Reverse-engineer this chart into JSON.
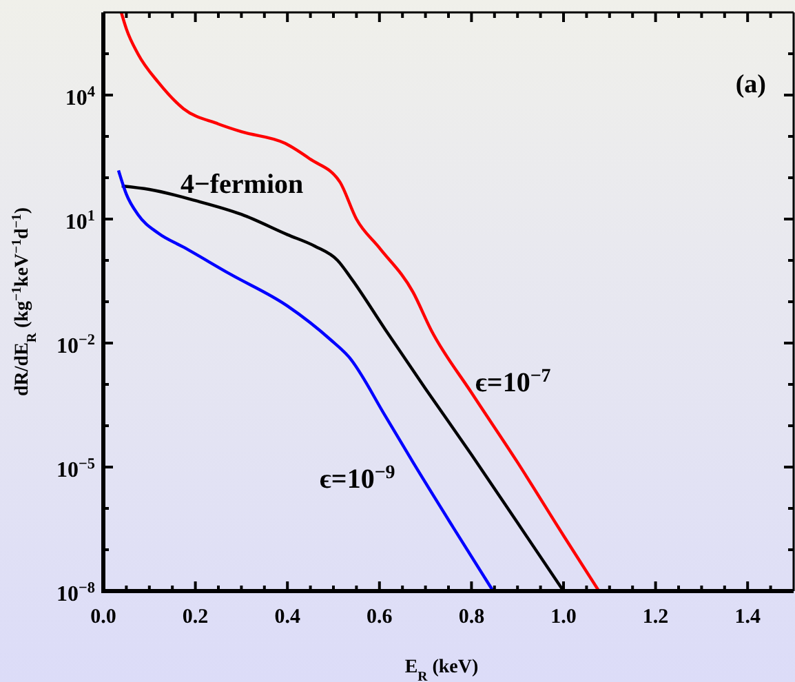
{
  "chart_data": {
    "type": "line",
    "xlabel": "E$_{R}$ (keV)",
    "ylabel": "dR/dE$_{R}$ (kg$^{−1}$keV$^{−1}$d$^{−1}$)",
    "annotations": [
      "(a)"
    ],
    "log": "y",
    "grid": false,
    "marker": "none",
    "line_style": "solid",
    "xlim": [
      0,
      1.5
    ],
    "xticks": [
      {
        "value": 0,
        "label": "0.0"
      },
      {
        "value": 0.05,
        "label": null
      },
      {
        "value": 0.1,
        "label": null
      },
      {
        "value": 0.15,
        "label": null
      },
      {
        "value": 0.2,
        "label": "0.2"
      },
      {
        "value": 0.25,
        "label": null
      },
      {
        "value": 0.3,
        "label": null
      },
      {
        "value": 0.35,
        "label": null
      },
      {
        "value": 0.4,
        "label": "0.4"
      },
      {
        "value": 0.45,
        "label": null
      },
      {
        "value": 0.5,
        "label": null
      },
      {
        "value": 0.55,
        "label": null
      },
      {
        "value": 0.6,
        "label": "0.6"
      },
      {
        "value": 0.65,
        "label": null
      },
      {
        "value": 0.7,
        "label": null
      },
      {
        "value": 0.75,
        "label": null
      },
      {
        "value": 0.8,
        "label": "0.8"
      },
      {
        "value": 0.85,
        "label": null
      },
      {
        "value": 0.9,
        "label": null
      },
      {
        "value": 0.95,
        "label": null
      },
      {
        "value": 1.0,
        "label": "1.0"
      },
      {
        "value": 1.05,
        "label": null
      },
      {
        "value": 1.1,
        "label": null
      },
      {
        "value": 1.15,
        "label": null
      },
      {
        "value": 1.2,
        "label": "1.2"
      },
      {
        "value": 1.25,
        "label": null
      },
      {
        "value": 1.3,
        "label": null
      },
      {
        "value": 1.35,
        "label": null
      },
      {
        "value": 1.4,
        "label": "1.4"
      },
      {
        "value": 1.45,
        "label": null
      }
    ],
    "ylim": [
      1e-08,
      1000000.0
    ],
    "yticks": [
      {
        "value": 1e-08,
        "label": "10$^{−8}$"
      },
      {
        "value": 1e-07,
        "label": null
      },
      {
        "value": 1e-06,
        "label": null
      },
      {
        "value": 1e-05,
        "label": "10$^{−5}$"
      },
      {
        "value": 0.0001,
        "label": null
      },
      {
        "value": 0.001,
        "label": null
      },
      {
        "value": 0.01,
        "label": "10$^{−2}$"
      },
      {
        "value": 0.1,
        "label": null
      },
      {
        "value": 1,
        "label": null
      },
      {
        "value": 10,
        "label": "10$^{1}$"
      },
      {
        "value": 100,
        "label": null
      },
      {
        "value": 1000,
        "label": null
      },
      {
        "value": 10000,
        "label": "10$^{4}$"
      },
      {
        "value": 100000,
        "label": null
      }
    ],
    "series": [
      {
        "name": "ϵ=10$^{−7}$",
        "color": "#ff0000",
        "x": [
          0.039,
          0.05,
          0.075,
          0.12,
          0.174,
          0.25,
          0.3,
          0.395,
          0.45,
          0.514,
          0.55,
          0.6,
          0.673,
          0.712,
          0.8,
          0.9,
          1.0,
          1.077
        ],
        "values": [
          1000000.0,
          400000.0,
          100000.0,
          20000.0,
          4700,
          2000,
          1300,
          680,
          280,
          79,
          10,
          2,
          0.17,
          0.021,
          0.00063,
          1.3e-05,
          2.2e-07,
          1e-08
        ]
      },
      {
        "name": "4−fermion",
        "color": "#000000",
        "x": [
          0.04,
          0.1,
          0.2,
          0.3,
          0.4,
          0.46,
          0.509,
          0.54,
          0.613,
          0.7,
          0.8,
          0.9,
          1.0
        ],
        "values": [
          63,
          52,
          28,
          13,
          4.2,
          2.2,
          1,
          0.35,
          0.021,
          0.00079,
          2e-05,
          4.5e-07,
          1e-08
        ]
      },
      {
        "name": "ϵ=10$^{−9}$",
        "color": "#0000ff",
        "x": [
          0.033,
          0.05,
          0.075,
          0.12,
          0.174,
          0.275,
          0.4,
          0.494,
          0.533,
          0.613,
          0.673,
          0.76,
          0.847
        ],
        "values": [
          150,
          40,
          13,
          4.5,
          2.1,
          0.47,
          0.079,
          0.012,
          0.0047,
          0.00017,
          1.3e-05,
          3.5e-07,
          1e-08
        ]
      }
    ]
  }
}
